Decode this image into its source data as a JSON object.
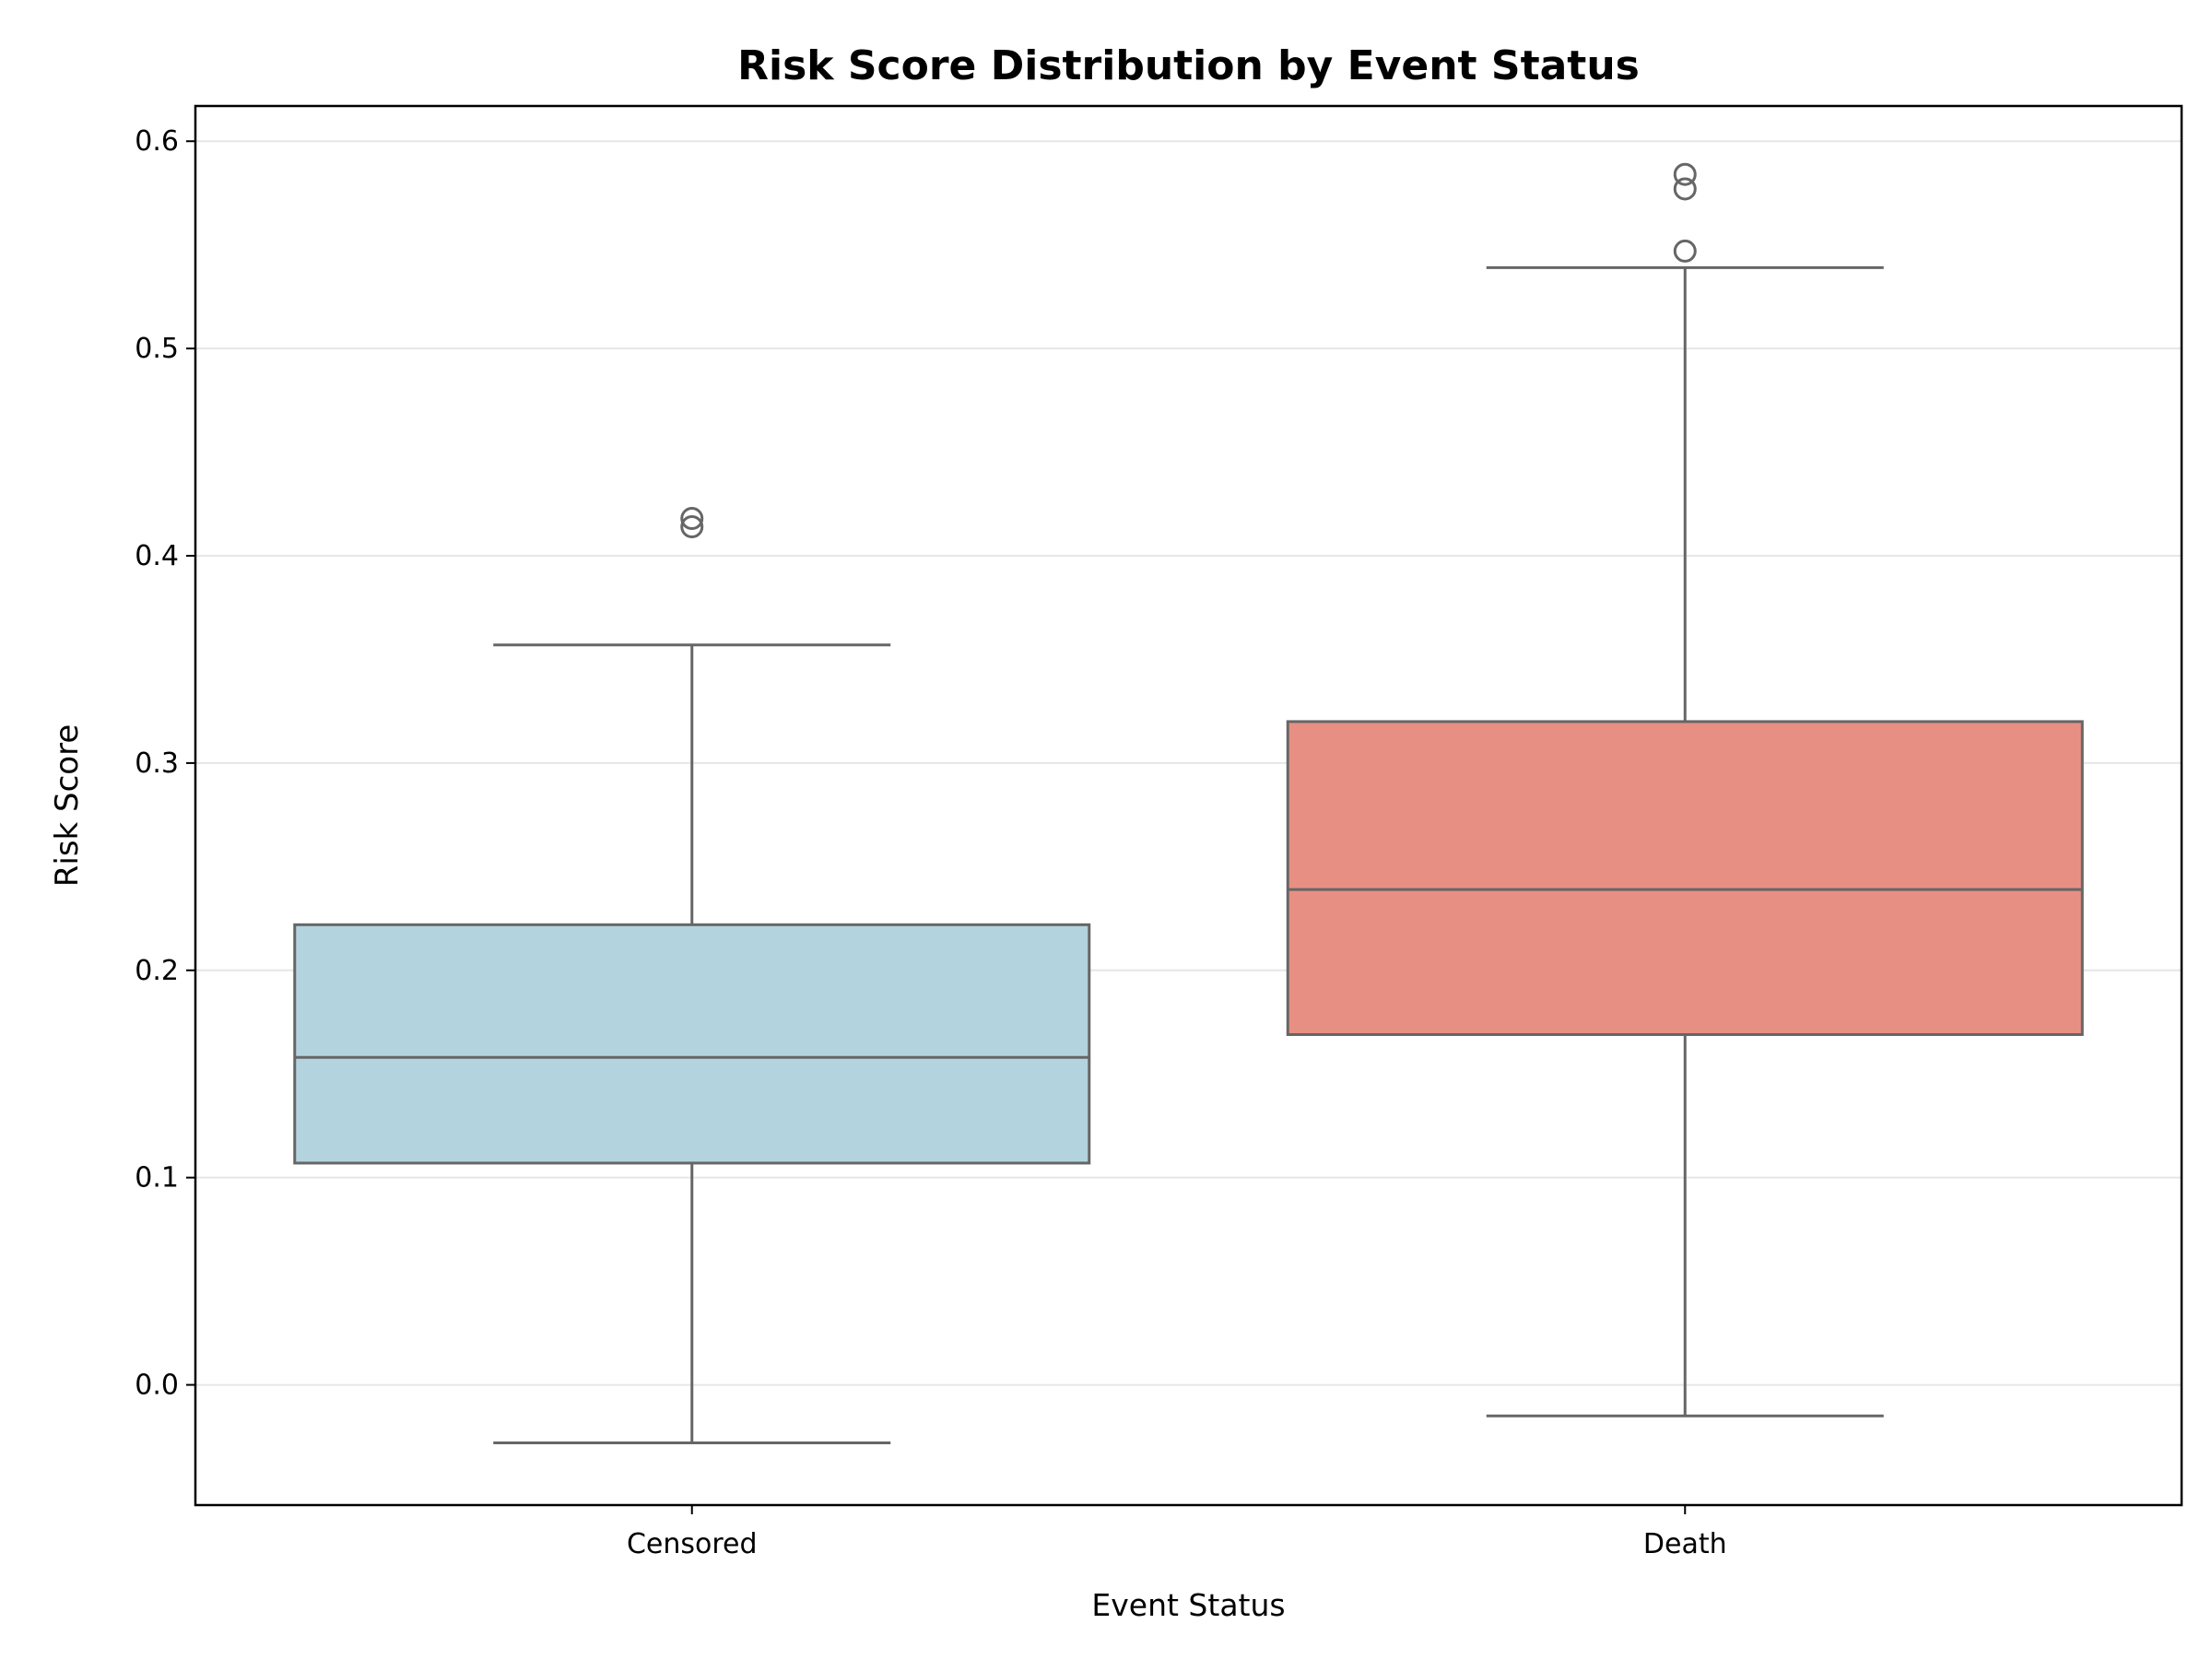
{
  "chart_data": {
    "type": "box",
    "title": "Risk Score Distribution by Event Status",
    "xlabel": "Event Status",
    "ylabel": "Risk Score",
    "ylim": [
      -0.058,
      0.617
    ],
    "yticks": [
      0.0,
      0.1,
      0.2,
      0.3,
      0.4,
      0.5,
      0.6
    ],
    "ytick_labels": [
      "0.0",
      "0.1",
      "0.2",
      "0.3",
      "0.4",
      "0.5",
      "0.6"
    ],
    "grid": "horizontal",
    "categories": [
      "Censored",
      "Death"
    ],
    "boxes": [
      {
        "category": "Censored",
        "whisker_low": -0.028,
        "q1": 0.107,
        "median": 0.158,
        "q3": 0.222,
        "whisker_high": 0.357,
        "outliers": [
          0.414,
          0.418
        ],
        "color": "#b3d4df"
      },
      {
        "category": "Death",
        "whisker_low": -0.015,
        "q1": 0.169,
        "median": 0.239,
        "q3": 0.32,
        "whisker_high": 0.539,
        "outliers": [
          0.547,
          0.577,
          0.584
        ],
        "color": "#e88f84"
      }
    ],
    "line_color": "#666666",
    "grid_color": "#e6e6e6"
  }
}
